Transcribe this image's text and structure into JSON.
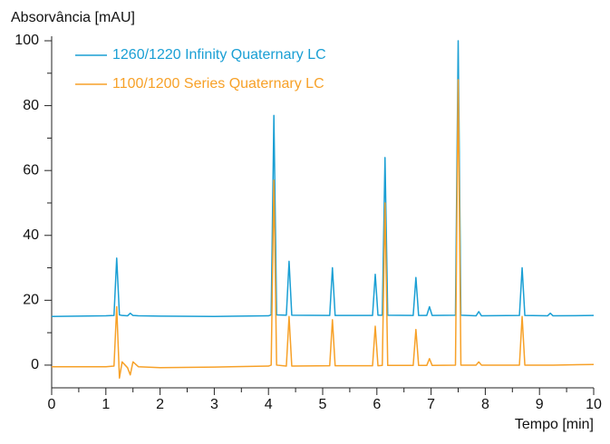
{
  "chart_data": {
    "type": "line",
    "y_label": "Absorvância [mAU]",
    "x_label": "Tempo [min]",
    "x": [
      0,
      1.0,
      1.15,
      1.2,
      1.25,
      1.3,
      1.4,
      1.45,
      1.5,
      1.6,
      2.0,
      3.0,
      4.0,
      4.05,
      4.1,
      4.15,
      4.33,
      4.38,
      4.43,
      5.13,
      5.18,
      5.23,
      5.92,
      5.97,
      6.02,
      6.1,
      6.15,
      6.2,
      6.67,
      6.72,
      6.77,
      6.92,
      6.97,
      7.02,
      7.45,
      7.5,
      7.55,
      7.83,
      7.88,
      7.93,
      8.63,
      8.68,
      8.73,
      9.15,
      9.2,
      9.25,
      10
    ],
    "series": [
      {
        "name": "1260/1220 Infinity Quaternary LC",
        "color": "#1a9fd4",
        "values": [
          15,
          15.2,
          15.3,
          33,
          15.5,
          15.3,
          15.2,
          16,
          15.3,
          15.2,
          15.1,
          15,
          15.2,
          15.5,
          77,
          15.5,
          15.4,
          32,
          15.4,
          15.3,
          30,
          15.3,
          15.3,
          28,
          15.4,
          15.4,
          64,
          15.4,
          15.3,
          27,
          15.3,
          15.3,
          18,
          15.3,
          15.4,
          100,
          15.4,
          15.2,
          16.5,
          15.2,
          15.3,
          30,
          15.3,
          15.2,
          16,
          15.2,
          15.3
        ]
      },
      {
        "name": "1100/1200 Series Quaternary LC",
        "color": "#f7a128",
        "values": [
          -0.5,
          -0.5,
          -0.3,
          18,
          -4,
          1,
          -0.8,
          -3,
          1,
          -0.5,
          -0.8,
          -0.6,
          -0.3,
          0,
          57,
          0,
          -0.3,
          15,
          -0.3,
          -0.2,
          14,
          -0.2,
          -0.2,
          12,
          -0.2,
          -0.1,
          50,
          -0.1,
          -0.1,
          11,
          -0.1,
          -0.1,
          2,
          -0.1,
          0,
          88,
          0,
          0,
          1,
          0,
          0,
          15,
          0,
          0,
          0,
          0,
          0.2
        ]
      }
    ],
    "xlim": [
      0,
      10
    ],
    "xticks": [
      0,
      1,
      2,
      3,
      4,
      5,
      6,
      7,
      8,
      9,
      10
    ],
    "xminorticks": [
      0.5,
      1.5,
      2.5,
      3.5,
      4.5,
      5.5,
      6.5,
      7.5,
      8.5,
      9.5
    ],
    "ylim": [
      -7,
      101.4
    ],
    "yticks": [
      0,
      20,
      40,
      60,
      80,
      100
    ],
    "yminorticks": [
      10,
      30,
      50,
      70,
      90
    ],
    "grid": false,
    "legend": "upper left"
  }
}
